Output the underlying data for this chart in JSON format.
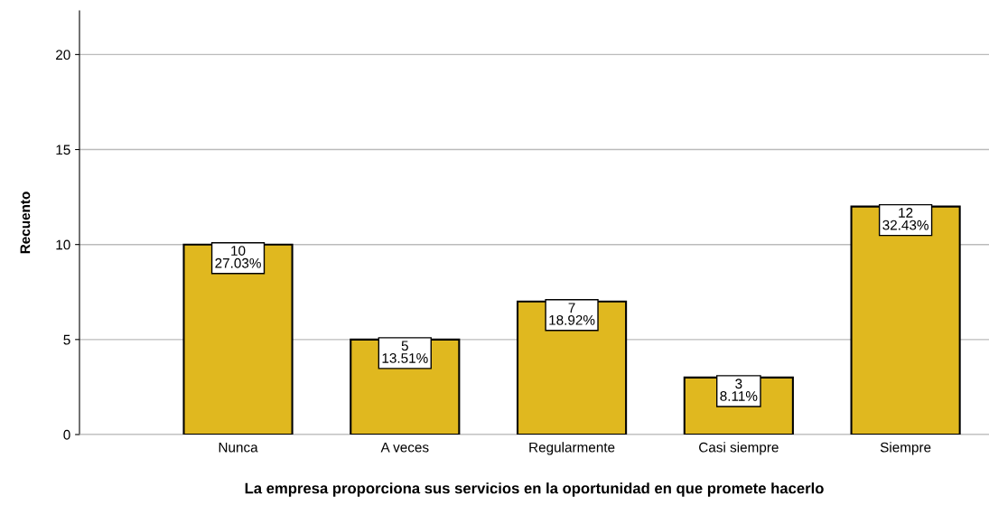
{
  "chart_data": {
    "type": "bar",
    "xlabel": "La empresa proporciona sus servicios en la oportunidad en que promete hacerlo",
    "ylabel": "Recuento",
    "categories": [
      "Nunca",
      "A veces",
      "Regularmente",
      "Casi siempre",
      "Siempre"
    ],
    "values": [
      10,
      5,
      7,
      3,
      12
    ],
    "color": "#e0b81f",
    "value_labels": [
      "10\n27.03%",
      "5\n13.51%",
      "7\n18.92%",
      "3\n8.11%",
      "12\n32.43%"
    ],
    "ylim": [
      0,
      22.3
    ],
    "yticks": [
      0,
      5,
      10,
      15,
      20
    ],
    "grid": "y"
  }
}
